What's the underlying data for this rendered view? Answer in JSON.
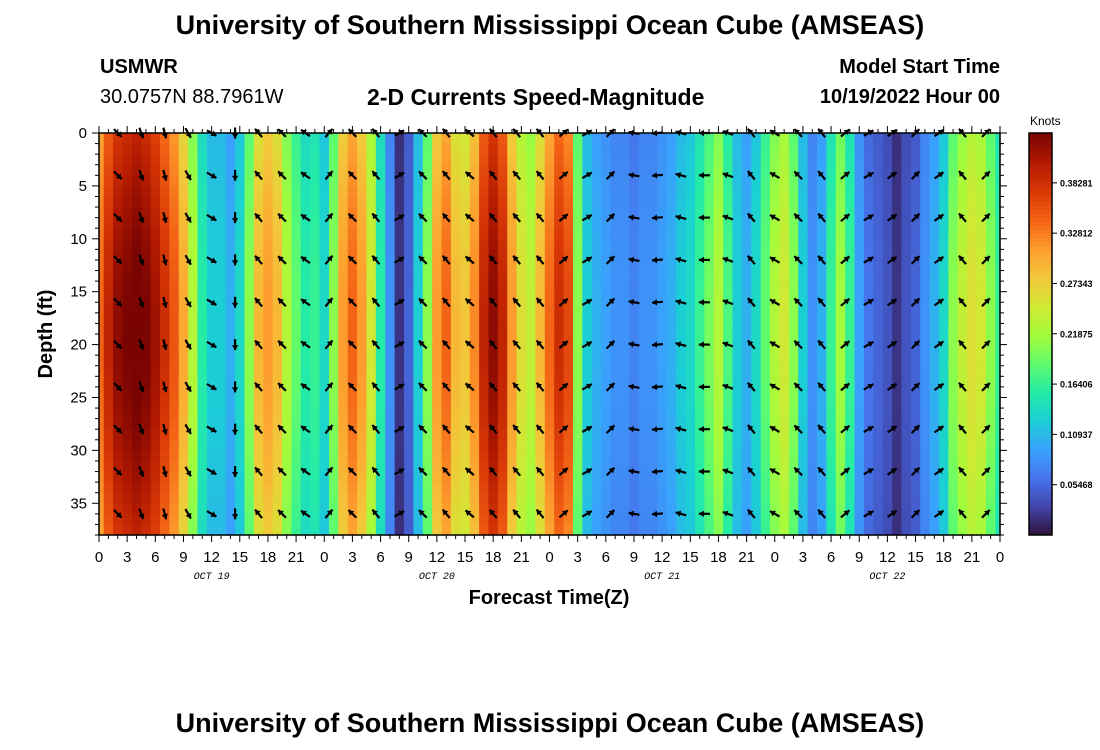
{
  "header": {
    "title": "University of Southern Mississippi Ocean Cube (AMSEAS)",
    "station": "USMWR",
    "coordinates": "30.0757N  88.7961W",
    "subtitle": "2-D Currents Speed-Magnitude",
    "model_start_label": "Model Start Time",
    "model_start_value": "10/19/2022 Hour 00"
  },
  "footer": {
    "title": "University of Southern Mississippi Ocean Cube (AMSEAS)"
  },
  "chart_data": {
    "type": "heatmap",
    "title": "2-D Currents Speed-Magnitude",
    "xlabel": "Forecast Time(Z)",
    "ylabel": "Depth (ft)",
    "xlim": [
      0,
      96
    ],
    "ylim": [
      0,
      38
    ],
    "x_tick_labels": [
      "0",
      "3",
      "6",
      "9",
      "12",
      "15",
      "18",
      "21",
      "0",
      "3",
      "6",
      "9",
      "12",
      "15",
      "18",
      "21",
      "0",
      "3",
      "6",
      "9",
      "12",
      "15",
      "18",
      "21",
      "0",
      "3",
      "6",
      "9",
      "12",
      "15",
      "18",
      "21",
      "0"
    ],
    "y_tick_values": [
      0,
      5,
      10,
      15,
      20,
      25,
      30,
      35
    ],
    "y_tick_labels": [
      "0",
      "5",
      "10",
      "15",
      "20",
      "25",
      "30",
      "35"
    ],
    "day_labels": [
      {
        "label": "OCT 19",
        "hour": 12
      },
      {
        "label": "OCT 20",
        "hour": 36
      },
      {
        "label": "OCT 21",
        "hour": 60
      },
      {
        "label": "OCT 22",
        "hour": 84
      }
    ],
    "colorbar": {
      "label": "Knots",
      "range": [
        0,
        0.437
      ],
      "ticks": [
        0.05468,
        0.10937,
        0.16406,
        0.21875,
        0.27343,
        0.32812,
        0.38281
      ],
      "tick_labels": [
        "0.05468",
        "0.10937",
        "0.16406",
        "0.21875",
        "0.27343",
        "0.32812",
        "0.38281"
      ],
      "colormap": [
        "#30123b",
        "#4145ab",
        "#4675ed",
        "#39a2fc",
        "#1bcfd4",
        "#24eca6",
        "#61fc6c",
        "#a4fc3b",
        "#d1e834",
        "#f3c63a",
        "#fe9b2d",
        "#f36315",
        "#d93806",
        "#b11901",
        "#7a0402"
      ]
    },
    "series": [
      {
        "name": "speed_knots_by_hour",
        "hours": [
          0,
          1,
          2,
          3,
          4,
          5,
          6,
          7,
          8,
          9,
          10,
          11,
          12,
          13,
          14,
          15,
          16,
          17,
          18,
          19,
          20,
          21,
          22,
          23,
          24,
          25,
          26,
          27,
          28,
          29,
          30,
          31,
          32,
          33,
          34,
          35,
          36,
          37,
          38,
          39,
          40,
          41,
          42,
          43,
          44,
          45,
          46,
          47,
          48,
          49,
          50,
          51,
          52,
          53,
          54,
          55,
          56,
          57,
          58,
          59,
          60,
          61,
          62,
          63,
          64,
          65,
          66,
          67,
          68,
          69,
          70,
          71,
          72,
          73,
          74,
          75,
          76,
          77,
          78,
          79,
          80,
          81,
          82,
          83,
          84,
          85,
          86,
          87,
          88,
          89,
          90,
          91,
          92,
          93,
          94,
          95,
          96
        ],
        "values": [
          0.33,
          0.38,
          0.41,
          0.42,
          0.43,
          0.42,
          0.4,
          0.37,
          0.34,
          0.29,
          0.22,
          0.15,
          0.12,
          0.12,
          0.1,
          0.13,
          0.2,
          0.28,
          0.3,
          0.28,
          0.22,
          0.18,
          0.15,
          0.16,
          0.13,
          0.2,
          0.3,
          0.33,
          0.3,
          0.24,
          0.15,
          0.08,
          0.02,
          0.05,
          0.12,
          0.2,
          0.3,
          0.33,
          0.28,
          0.27,
          0.31,
          0.38,
          0.41,
          0.38,
          0.3,
          0.25,
          0.23,
          0.28,
          0.33,
          0.37,
          0.35,
          0.2,
          0.12,
          0.1,
          0.09,
          0.08,
          0.08,
          0.07,
          0.08,
          0.08,
          0.09,
          0.1,
          0.12,
          0.13,
          0.16,
          0.19,
          0.22,
          0.17,
          0.12,
          0.1,
          0.13,
          0.18,
          0.22,
          0.24,
          0.2,
          0.12,
          0.08,
          0.1,
          0.16,
          0.21,
          0.16,
          0.09,
          0.06,
          0.05,
          0.04,
          0.02,
          0.04,
          0.05,
          0.08,
          0.1,
          0.13,
          0.2,
          0.23,
          0.25,
          0.24,
          0.2,
          0.16
        ]
      },
      {
        "name": "arrow_direction_degrees",
        "hours": [
          2,
          4.5,
          7,
          9.5,
          12,
          14.5,
          17,
          19.5,
          22,
          24.5,
          27,
          29.5,
          32,
          34.5,
          37,
          39.5,
          42,
          44.5,
          47,
          49.5,
          52,
          54.5,
          57,
          59.5,
          62,
          64.5,
          67,
          69.5,
          72,
          74.5,
          77,
          79.5,
          82,
          84.5,
          87,
          89.5,
          92,
          94.5
        ],
        "angles": [
          135,
          160,
          165,
          150,
          120,
          180,
          320,
          315,
          305,
          40,
          315,
          320,
          60,
          315,
          320,
          310,
          320,
          320,
          320,
          50,
          60,
          45,
          280,
          265,
          285,
          270,
          290,
          320,
          300,
          315,
          320,
          50,
          60,
          55,
          45,
          55,
          320,
          45
        ]
      }
    ]
  }
}
